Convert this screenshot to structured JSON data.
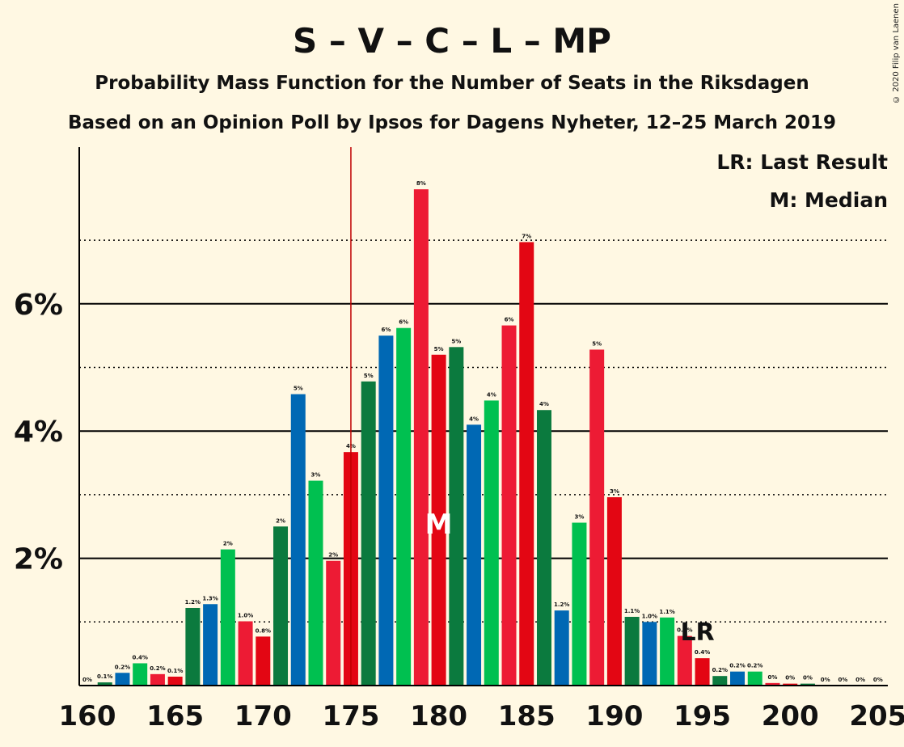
{
  "title": "S – V – C – L – MP",
  "subtitle1": "Probability Mass Function for the Number of Seats in the Riksdagen",
  "subtitle2": "Based on an Opinion Poll by Ipsos for Dagens Nyheter, 12–25 March 2019",
  "legend": {
    "lr": "LR: Last Result",
    "m": "M: Median"
  },
  "copyright": "© 2020 Filip van Laenen",
  "colors": {
    "background": "#FFF8E3",
    "palette": [
      "#E30613",
      "#0B7A3E",
      "#0068B4",
      "#00C050",
      "#ED1B34"
    ],
    "lastResultLine": "#C00000"
  },
  "chart_data": {
    "type": "bar",
    "x": [
      160,
      161,
      162,
      163,
      164,
      165,
      166,
      167,
      168,
      169,
      170,
      171,
      172,
      173,
      174,
      175,
      176,
      177,
      178,
      179,
      180,
      181,
      182,
      183,
      184,
      185,
      186,
      187,
      188,
      189,
      190,
      191,
      192,
      193,
      194,
      195,
      196,
      197,
      198,
      199,
      200,
      201,
      202,
      203,
      204,
      205
    ],
    "values": [
      0.0,
      0.05,
      0.2,
      0.35,
      0.18,
      0.14,
      1.22,
      1.28,
      2.14,
      1.01,
      0.77,
      2.5,
      4.58,
      3.22,
      1.96,
      3.67,
      4.78,
      5.5,
      5.62,
      7.8,
      5.2,
      5.32,
      4.1,
      4.48,
      5.66,
      6.97,
      4.33,
      1.18,
      2.56,
      5.28,
      2.96,
      1.08,
      1.0,
      1.07,
      0.78,
      0.43,
      0.15,
      0.22,
      0.22,
      0.04,
      0.03,
      0.03,
      0.0,
      0.0,
      0.0,
      0.0
    ],
    "labels": [
      "0%",
      "0.1%",
      "0.2%",
      "0.4%",
      "0.2%",
      "0.1%",
      "1.2%",
      "1.3%",
      "2%",
      "1.0%",
      "0.8%",
      "2%",
      "5%",
      "3%",
      "2%",
      "4%",
      "5%",
      "6%",
      "6%",
      "8%",
      "5%",
      "5%",
      "4%",
      "4%",
      "6%",
      "7%",
      "4%",
      "1.2%",
      "3%",
      "5%",
      "3%",
      "1.1%",
      "1.0%",
      "1.1%",
      "0.8%",
      "0.4%",
      "0.2%",
      "0.2%",
      "0.2%",
      "0%",
      "0%",
      "0%",
      "0%",
      "0%",
      "0%",
      "0%"
    ],
    "xticks": [
      160,
      165,
      170,
      175,
      180,
      185,
      190,
      195,
      200,
      205
    ],
    "xtick_labels": [
      "160",
      "165",
      "170",
      "175",
      "180",
      "185",
      "190",
      "195",
      "200",
      "205"
    ],
    "yticks_major": [
      2,
      4,
      6
    ],
    "ytick_labels": [
      "2%",
      "4%",
      "6%"
    ],
    "yticks_minor": [
      1,
      3,
      5,
      7
    ],
    "ylim": [
      0,
      8.4
    ],
    "xlim": [
      159.5,
      205.5
    ],
    "last_result": 175,
    "last_result_label": "LR",
    "median": 180,
    "median_label": "M"
  }
}
